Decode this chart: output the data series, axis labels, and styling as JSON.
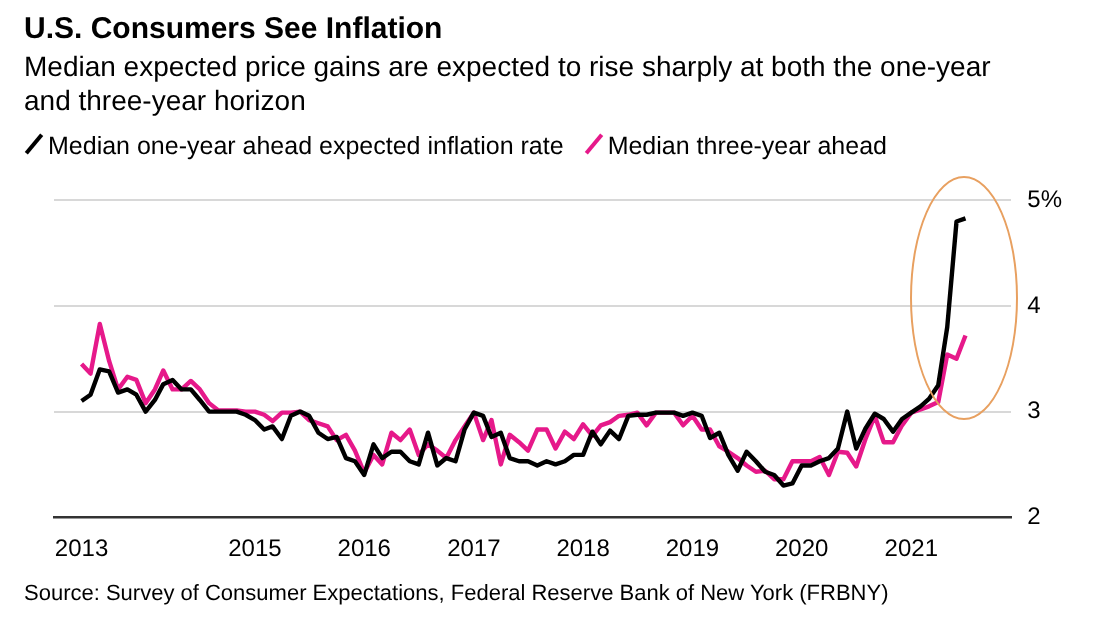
{
  "chart_data": {
    "type": "line",
    "title": "U.S. Consumers See Inflation",
    "subtitle": "Median expected price gains are expected to rise sharply at both the one-year and three-year horizon",
    "annotations": [
      "Source: Survey of Consumer Expectations, Federal Reserve Bank of New York (FRBNY)"
    ],
    "x": [
      "2013-06",
      "2013-07",
      "2013-08",
      "2013-09",
      "2013-10",
      "2013-11",
      "2013-12",
      "2014-01",
      "2014-02",
      "2014-03",
      "2014-04",
      "2014-05",
      "2014-06",
      "2014-07",
      "2014-08",
      "2014-09",
      "2014-10",
      "2014-11",
      "2014-12",
      "2015-01",
      "2015-02",
      "2015-03",
      "2015-04",
      "2015-05",
      "2015-06",
      "2015-07",
      "2015-08",
      "2015-09",
      "2015-10",
      "2015-11",
      "2015-12",
      "2016-01",
      "2016-02",
      "2016-03",
      "2016-04",
      "2016-05",
      "2016-06",
      "2016-07",
      "2016-08",
      "2016-09",
      "2016-10",
      "2016-11",
      "2016-12",
      "2017-01",
      "2017-02",
      "2017-03",
      "2017-04",
      "2017-05",
      "2017-06",
      "2017-07",
      "2017-08",
      "2017-09",
      "2017-10",
      "2017-11",
      "2017-12",
      "2018-01",
      "2018-02",
      "2018-03",
      "2018-04",
      "2018-05",
      "2018-06",
      "2018-07",
      "2018-08",
      "2018-09",
      "2018-10",
      "2018-11",
      "2018-12",
      "2019-01",
      "2019-02",
      "2019-03",
      "2019-04",
      "2019-05",
      "2019-06",
      "2019-07",
      "2019-08",
      "2019-09",
      "2019-10",
      "2019-11",
      "2019-12",
      "2020-01",
      "2020-02",
      "2020-03",
      "2020-04",
      "2020-05",
      "2020-06",
      "2020-07",
      "2020-08",
      "2020-09",
      "2020-10",
      "2020-11",
      "2020-12",
      "2021-01",
      "2021-02",
      "2021-03",
      "2021-04",
      "2021-05",
      "2021-06",
      "2021-07"
    ],
    "series": [
      {
        "name": "Median one-year ahead expected inflation rate",
        "color": "#000000",
        "values": [
          3.1,
          3.16,
          3.4,
          3.38,
          3.18,
          3.21,
          3.16,
          3.0,
          3.11,
          3.26,
          3.3,
          3.21,
          3.21,
          3.11,
          3.0,
          3.0,
          3.0,
          3.0,
          2.97,
          2.92,
          2.83,
          2.86,
          2.74,
          2.96,
          3.0,
          2.96,
          2.8,
          2.74,
          2.76,
          2.56,
          2.53,
          2.4,
          2.69,
          2.56,
          2.62,
          2.62,
          2.53,
          2.5,
          2.8,
          2.49,
          2.56,
          2.53,
          2.83,
          2.99,
          2.96,
          2.76,
          2.8,
          2.56,
          2.53,
          2.53,
          2.49,
          2.53,
          2.5,
          2.53,
          2.59,
          2.59,
          2.81,
          2.69,
          2.82,
          2.74,
          2.96,
          2.97,
          2.97,
          2.99,
          2.99,
          2.99,
          2.96,
          2.99,
          2.96,
          2.75,
          2.8,
          2.59,
          2.44,
          2.62,
          2.53,
          2.43,
          2.4,
          2.3,
          2.32,
          2.49,
          2.49,
          2.53,
          2.56,
          2.65,
          3.0,
          2.65,
          2.84,
          2.98,
          2.93,
          2.81,
          2.93,
          2.99,
          3.05,
          3.12,
          3.25,
          3.8,
          4.8,
          4.83
        ]
      },
      {
        "name": "Median three-year ahead",
        "color": "#e6198a",
        "values": [
          3.45,
          3.36,
          3.83,
          3.48,
          3.21,
          3.33,
          3.3,
          3.08,
          3.21,
          3.39,
          3.21,
          3.21,
          3.29,
          3.21,
          3.08,
          3.01,
          3.01,
          3.01,
          3.0,
          3.0,
          2.97,
          2.91,
          2.99,
          2.99,
          3.0,
          2.92,
          2.89,
          2.86,
          2.73,
          2.78,
          2.63,
          2.42,
          2.59,
          2.5,
          2.8,
          2.73,
          2.83,
          2.59,
          2.69,
          2.63,
          2.56,
          2.73,
          2.86,
          2.99,
          2.73,
          2.92,
          2.5,
          2.78,
          2.71,
          2.63,
          2.83,
          2.83,
          2.65,
          2.81,
          2.74,
          2.88,
          2.77,
          2.87,
          2.9,
          2.96,
          2.97,
          2.99,
          2.87,
          2.99,
          2.99,
          2.99,
          2.87,
          2.96,
          2.83,
          2.83,
          2.67,
          2.62,
          2.56,
          2.49,
          2.43,
          2.44,
          2.36,
          2.36,
          2.53,
          2.53,
          2.53,
          2.57,
          2.4,
          2.62,
          2.61,
          2.48,
          2.74,
          2.96,
          2.71,
          2.71,
          2.87,
          2.99,
          3.02,
          3.05,
          3.09,
          3.54,
          3.5,
          3.72
        ]
      }
    ],
    "xlim": [
      "2013-03",
      "2021-12"
    ],
    "xticks": [
      {
        "value": "2013-06",
        "label": "2013"
      },
      {
        "value": "2015",
        "label": "2015"
      },
      {
        "value": "2016",
        "label": "2016"
      },
      {
        "value": "2017",
        "label": "2017"
      },
      {
        "value": "2018",
        "label": "2018"
      },
      {
        "value": "2019",
        "label": "2019"
      },
      {
        "value": "2020",
        "label": "2020"
      },
      {
        "value": "2021",
        "label": "2021"
      }
    ],
    "ylim": [
      2,
      5
    ],
    "yticks": [
      2,
      3,
      4,
      {
        "value": 5,
        "label": "5%"
      }
    ],
    "grid": "y",
    "legend": "top left",
    "marker": "none"
  }
}
